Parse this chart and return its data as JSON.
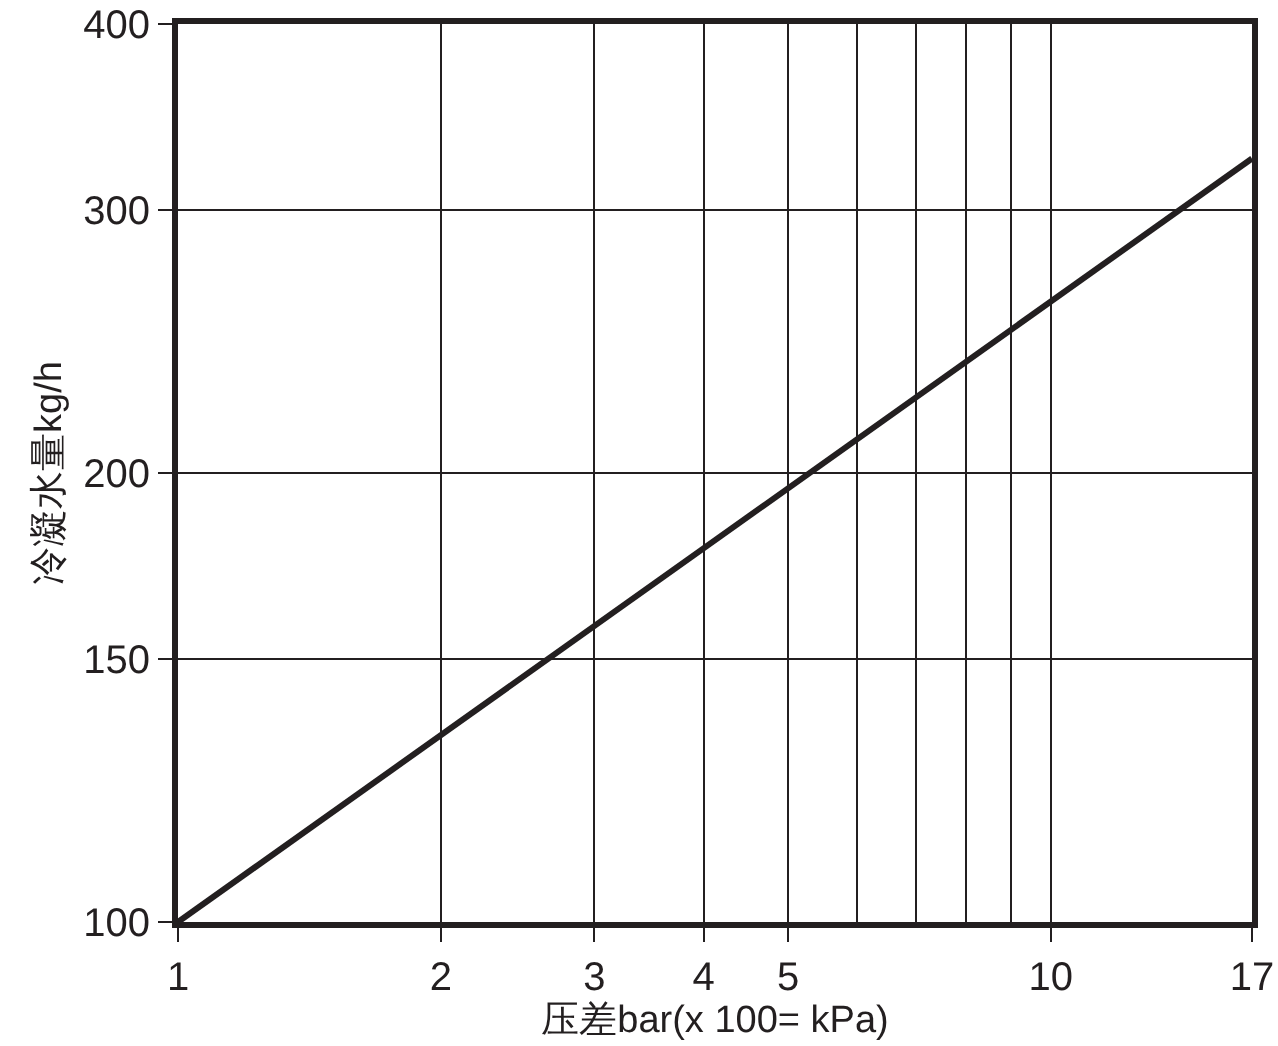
{
  "chart_data": {
    "type": "line",
    "xlabel": "压差bar(x 100= kPa)",
    "ylabel": "冷凝水量kg/h",
    "x": [
      1,
      17
    ],
    "series": [
      {
        "color": "#231f20",
        "values": [
          100,
          325
        ]
      }
    ],
    "log": "xy",
    "xlim": [
      1,
      17
    ],
    "ylim": [
      100,
      400
    ],
    "xticks": [
      1,
      2,
      3,
      4,
      5,
      {
        "value": 6,
        "label": null
      },
      {
        "value": 7,
        "label": null
      },
      {
        "value": 8,
        "label": null
      },
      {
        "value": 9,
        "label": null
      },
      10,
      17
    ],
    "yticks": [
      100,
      150,
      200,
      300,
      400
    ],
    "grid": true,
    "line_style": "solid"
  }
}
